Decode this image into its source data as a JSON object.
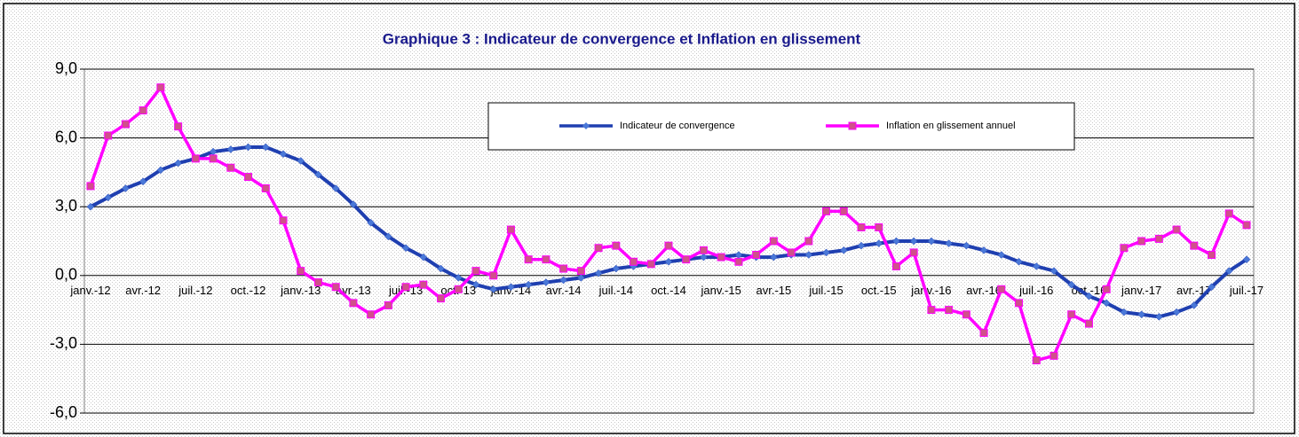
{
  "chart_data": {
    "type": "line",
    "title": "Graphique 3 : Indicateur de convergence et Inflation en glissement",
    "categories": [
      "janv.-12",
      null,
      null,
      "avr.-12",
      null,
      null,
      "juil.-12",
      null,
      null,
      "oct.-12",
      null,
      null,
      "janv.-13",
      null,
      null,
      "avr.-13",
      null,
      null,
      "juil.-13",
      null,
      null,
      "oct.-13",
      null,
      null,
      "janv.-14",
      null,
      null,
      "avr.-14",
      null,
      null,
      "juil.-14",
      null,
      null,
      "oct.-14",
      null,
      null,
      "janv.-15",
      null,
      null,
      "avr.-15",
      null,
      null,
      "juil.-15",
      null,
      null,
      "oct.-15",
      null,
      null,
      "janv.-16",
      null,
      null,
      "avr.-16",
      null,
      null,
      "juil.-16",
      null,
      null,
      "oct.-16",
      null,
      null,
      "janv.-17",
      null,
      null,
      "avr.-17",
      null,
      null,
      "juil.-17"
    ],
    "series": [
      {
        "name": "Indicateur de convergence",
        "color": "#1f3fb0",
        "marker": "diamond",
        "values": [
          3.0,
          3.4,
          3.8,
          4.1,
          4.6,
          4.9,
          5.1,
          5.4,
          5.5,
          5.6,
          5.6,
          5.3,
          5.0,
          4.4,
          3.8,
          3.1,
          2.3,
          1.7,
          1.2,
          0.8,
          0.3,
          -0.1,
          -0.4,
          -0.6,
          -0.5,
          -0.4,
          -0.3,
          -0.2,
          -0.1,
          0.1,
          0.3,
          0.4,
          0.5,
          0.6,
          0.7,
          0.8,
          0.8,
          0.9,
          0.8,
          0.8,
          0.9,
          0.9,
          1.0,
          1.1,
          1.3,
          1.4,
          1.5,
          1.5,
          1.5,
          1.4,
          1.3,
          1.1,
          0.9,
          0.6,
          0.4,
          0.2,
          -0.4,
          -0.9,
          -1.2,
          -1.6,
          -1.7,
          -1.8,
          -1.6,
          -1.3,
          -0.5,
          0.2,
          0.7
        ]
      },
      {
        "name": "Inflation en glissement annuel",
        "color": "#ff00ff",
        "marker": "square",
        "values": [
          3.9,
          6.1,
          6.6,
          7.2,
          8.2,
          6.5,
          5.1,
          5.1,
          4.7,
          4.3,
          3.8,
          2.4,
          0.2,
          -0.3,
          -0.5,
          -1.2,
          -1.7,
          -1.3,
          -0.5,
          -0.4,
          -1.0,
          -0.6,
          0.2,
          0.0,
          2.0,
          0.7,
          0.7,
          0.3,
          0.2,
          1.2,
          1.3,
          0.6,
          0.5,
          1.3,
          0.7,
          1.1,
          0.8,
          0.6,
          0.9,
          1.5,
          1.0,
          1.5,
          2.8,
          2.8,
          2.1,
          2.1,
          0.4,
          1.0,
          -1.5,
          -1.5,
          -1.7,
          -2.5,
          -0.6,
          -1.2,
          -3.7,
          -3.5,
          -1.7,
          -2.1,
          -0.6,
          1.2,
          1.5,
          1.6,
          2.0,
          1.3,
          0.9,
          2.7,
          2.2
        ]
      }
    ],
    "ylim": [
      -6,
      9
    ],
    "yticks": [
      {
        "value": -6,
        "label": "-6,0"
      },
      {
        "value": -3,
        "label": "-3,0"
      },
      {
        "value": 0,
        "label": "0,0"
      },
      {
        "value": 3,
        "label": "3,0"
      },
      {
        "value": 6,
        "label": "6,0"
      },
      {
        "value": 9,
        "label": "9,0"
      }
    ],
    "grid": true
  }
}
